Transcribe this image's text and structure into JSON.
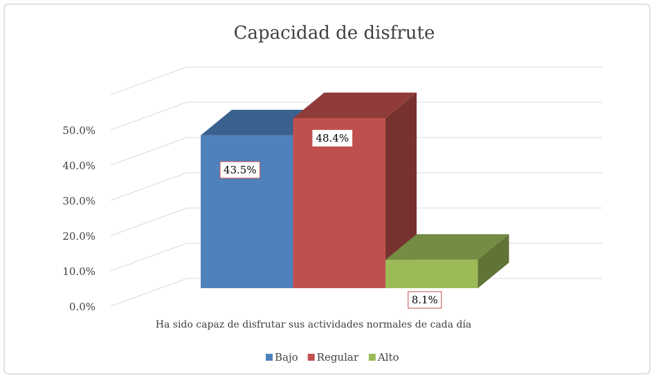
{
  "chart_data": {
    "type": "bar3d",
    "title": "Capacidad de disfrute",
    "categories": [
      "Ha sido capaz de disfrutar sus actividades normales de cada día"
    ],
    "series": [
      {
        "name": "Bajo",
        "color": "#4f81bd",
        "values": [
          43.5
        ],
        "value_labels": [
          "43.5%"
        ]
      },
      {
        "name": "Regular",
        "color": "#c0504d",
        "values": [
          48.4
        ],
        "value_labels": [
          "48.4%"
        ]
      },
      {
        "name": "Alto",
        "color": "#9bbb59",
        "values": [
          8.1
        ],
        "value_labels": [
          "8.1%"
        ]
      }
    ],
    "ylim": [
      0,
      60
    ],
    "yticks": [
      {
        "value": 0,
        "label": "0.0%"
      },
      {
        "value": 10,
        "label": "10.0%"
      },
      {
        "value": 20,
        "label": "20.0%"
      },
      {
        "value": 30,
        "label": "30.0%"
      },
      {
        "value": 40,
        "label": "40.0%"
      },
      {
        "value": 50,
        "label": "50.0%"
      }
    ],
    "grid": true,
    "legend": "bottom"
  }
}
